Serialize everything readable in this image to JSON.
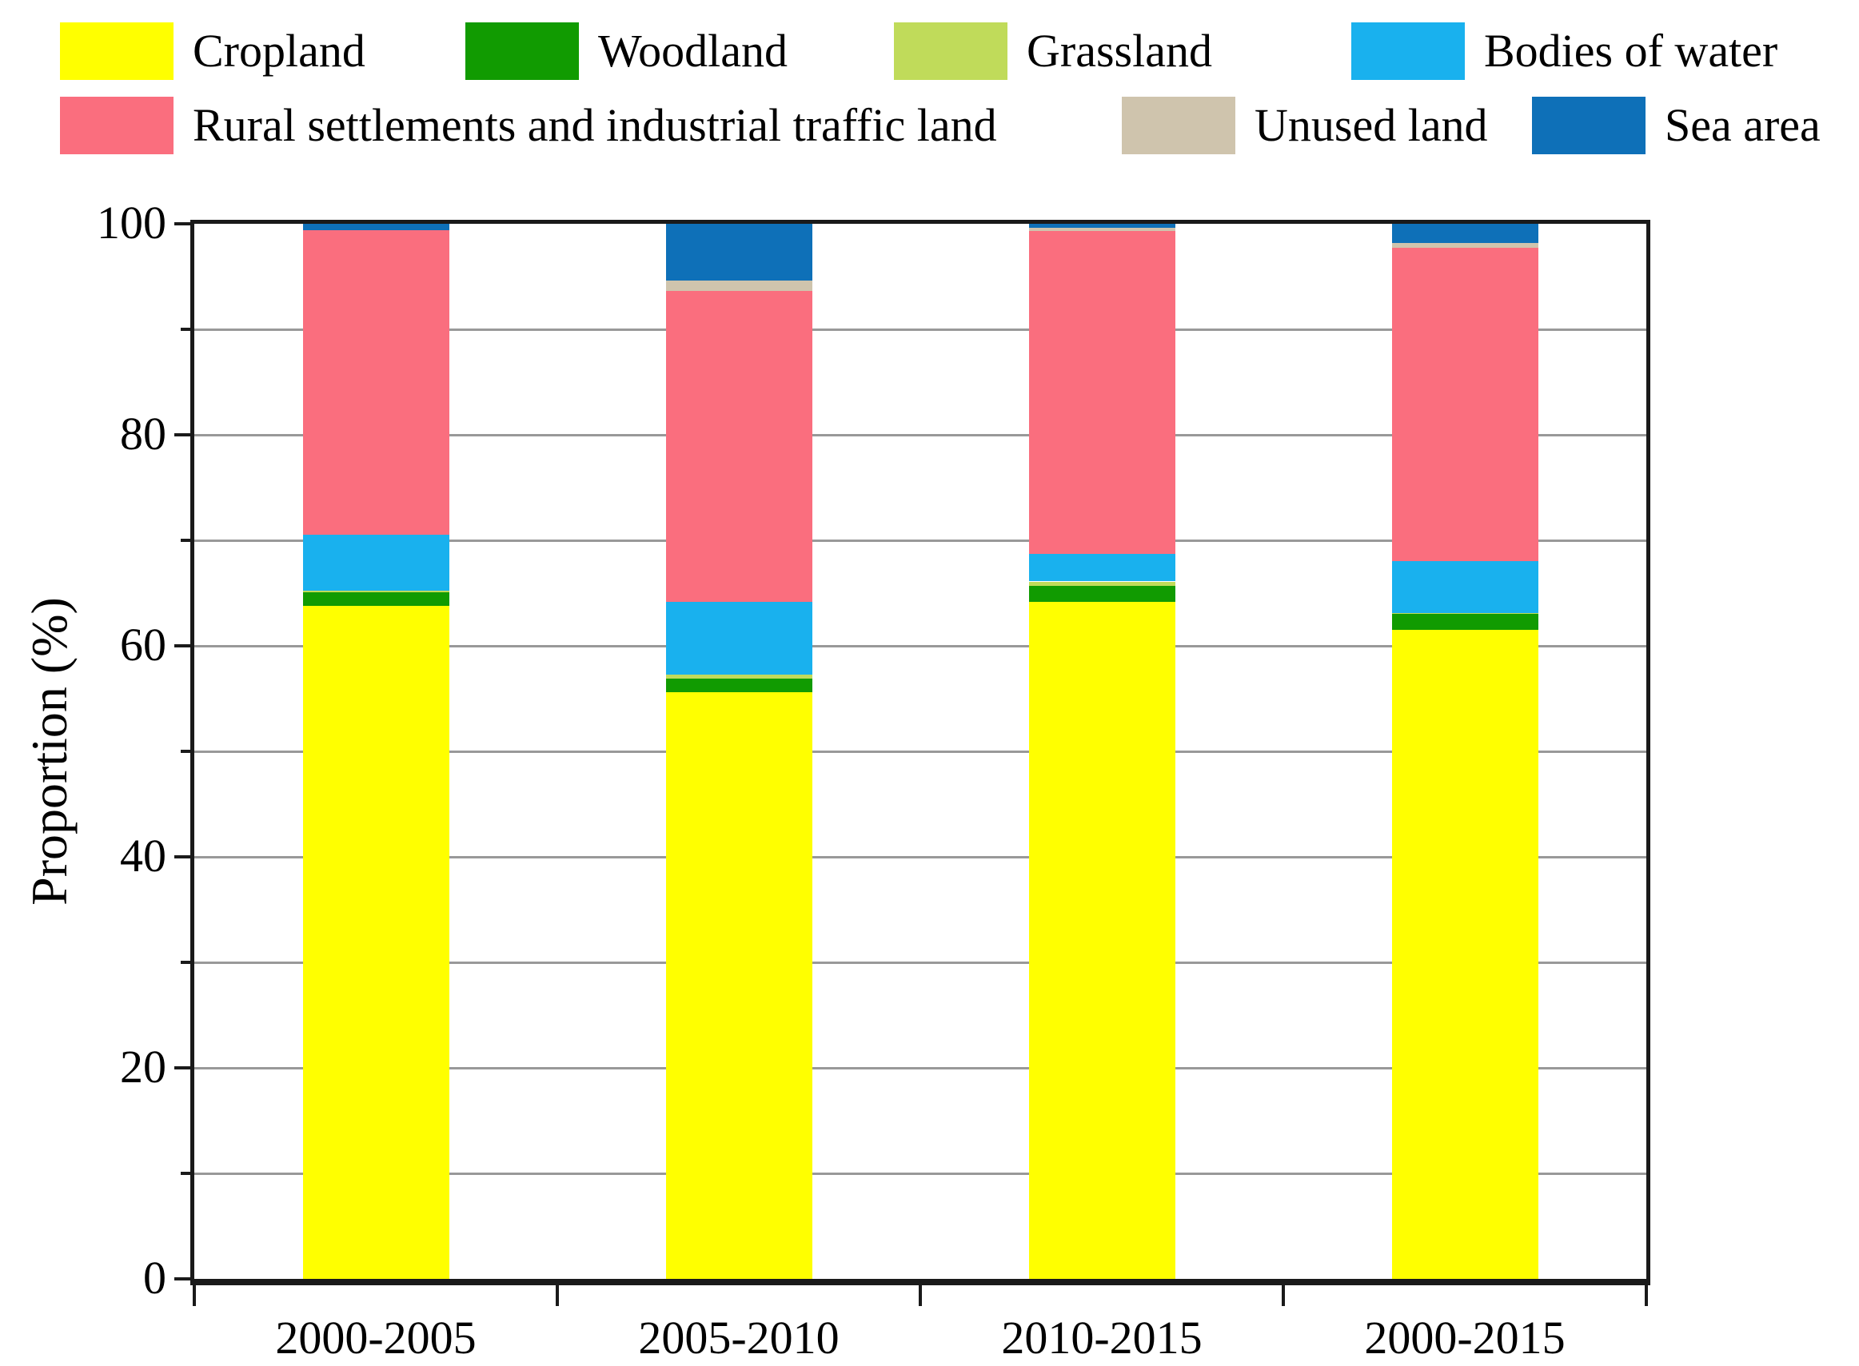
{
  "chart_data": {
    "type": "bar",
    "stacked": true,
    "categories": [
      "2000-2005",
      "2005-2010",
      "2010-2015",
      "2000-2015"
    ],
    "series": [
      {
        "name": "Cropland",
        "color": "#ffff00",
        "values": [
          63.8,
          55.6,
          64.2,
          61.5
        ]
      },
      {
        "name": "Woodland",
        "color": "#119b01",
        "values": [
          1.3,
          1.3,
          1.5,
          1.5
        ]
      },
      {
        "name": "Grassland",
        "color": "#c0db5a",
        "values": [
          0.1,
          0.4,
          0.4,
          0.1
        ]
      },
      {
        "name": "Bodies of water",
        "color": "#19b1ee",
        "values": [
          5.3,
          6.9,
          2.6,
          4.9
        ]
      },
      {
        "name": "Rural settlements and industrial traffic land",
        "color": "#fa6e7e",
        "values": [
          28.9,
          29.4,
          30.6,
          29.7
        ]
      },
      {
        "name": "Unused land",
        "color": "#cfc4ad",
        "values": [
          0.0,
          1.0,
          0.3,
          0.5
        ]
      },
      {
        "name": "Sea area",
        "color": "#0e70b8",
        "values": [
          0.6,
          5.4,
          0.4,
          1.8
        ]
      }
    ],
    "title": "",
    "xlabel": "",
    "ylabel": "Proportion (%)",
    "ylim": [
      0,
      100
    ],
    "y_tick_labels": [
      "0",
      "20",
      "40",
      "60",
      "80",
      "100"
    ],
    "y_major_interval": 20,
    "y_minor_interval": 10,
    "grid": true,
    "grid_interval": 10,
    "legend_position": "top",
    "style": {
      "grid_color": "#999999",
      "axis_color": "#1a1a1a",
      "background": "#ffffff"
    }
  },
  "legend": {
    "rows": [
      [
        "Cropland",
        "Woodland",
        "Grassland",
        "Bodies of water"
      ],
      [
        "Rural settlements and industrial traffic land",
        "Unused land",
        "Sea area"
      ]
    ]
  }
}
